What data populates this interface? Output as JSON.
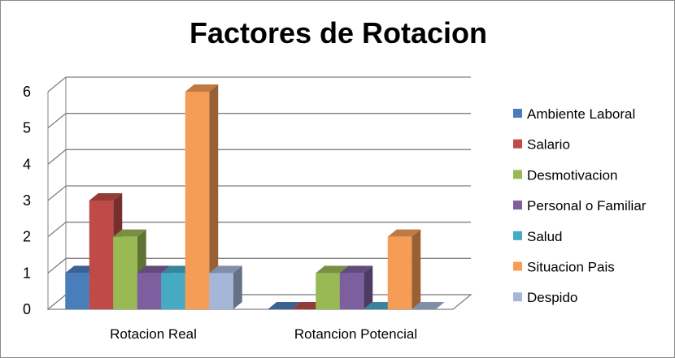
{
  "chart_data": {
    "type": "bar",
    "style": "3d-clustered-column",
    "title": "Factores de Rotacion",
    "categories": [
      "Rotacion Real",
      "Rotancion Potencial"
    ],
    "series": [
      {
        "name": "Ambiente Laboral",
        "values": [
          1,
          0
        ],
        "color": "#4a7ebb"
      },
      {
        "name": "Salario",
        "values": [
          3,
          0
        ],
        "color": "#be4b48"
      },
      {
        "name": "Desmotivacion",
        "values": [
          2,
          1
        ],
        "color": "#98b954"
      },
      {
        "name": "Personal o Familiar",
        "values": [
          1,
          1
        ],
        "color": "#7d5fa0"
      },
      {
        "name": "Salud",
        "values": [
          1,
          0
        ],
        "color": "#46aac5"
      },
      {
        "name": "Situacion Pais",
        "values": [
          6,
          2
        ],
        "color": "#f59d56"
      },
      {
        "name": "Despido",
        "values": [
          1,
          0
        ],
        "color": "#a5b6d9"
      }
    ],
    "yticks": [
      "0",
      "1",
      "2",
      "3",
      "4",
      "5",
      "6"
    ],
    "ylim": [
      0,
      6
    ],
    "xlabel": "",
    "ylabel": "",
    "grid": true,
    "legend_position": "right"
  }
}
